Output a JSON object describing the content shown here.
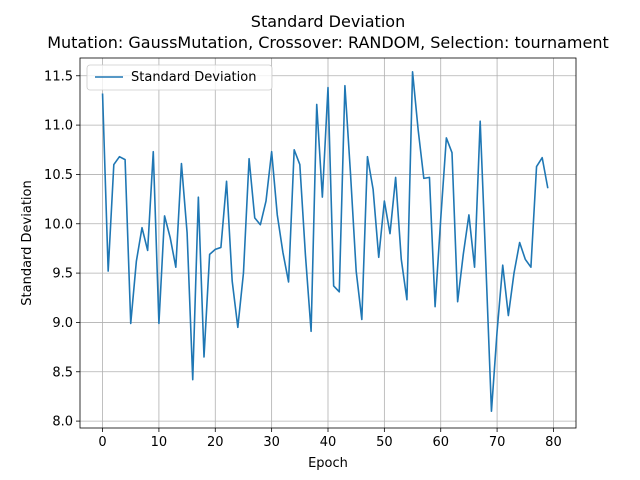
{
  "chart_data": {
    "type": "line",
    "title": "Standard Deviation",
    "subtitle": "Mutation: GaussMutation, Crossover: RANDOM, Selection: tournament",
    "xlabel": "Epoch",
    "ylabel": "Standard Deviation",
    "xlim": [
      -4,
      84
    ],
    "ylim": [
      7.93,
      11.68
    ],
    "xticks": [
      0,
      10,
      20,
      30,
      40,
      50,
      60,
      70,
      80
    ],
    "yticks": [
      8.0,
      8.5,
      9.0,
      9.5,
      10.0,
      10.5,
      11.0,
      11.5
    ],
    "ytick_labels": [
      "8.0",
      "8.5",
      "9.0",
      "9.5",
      "10.0",
      "10.5",
      "11.0",
      "11.5"
    ],
    "grid": true,
    "legend_position": "upper-left",
    "series": [
      {
        "name": "Standard Deviation",
        "color": "#1f77b4",
        "x": [
          0,
          1,
          2,
          3,
          4,
          5,
          6,
          7,
          8,
          9,
          10,
          11,
          12,
          13,
          14,
          15,
          16,
          17,
          18,
          19,
          20,
          21,
          22,
          23,
          24,
          25,
          26,
          27,
          28,
          29,
          30,
          31,
          32,
          33,
          34,
          35,
          36,
          37,
          38,
          39,
          40,
          41,
          42,
          43,
          44,
          45,
          46,
          47,
          48,
          49,
          50,
          51,
          52,
          53,
          54,
          55,
          56,
          57,
          58,
          59,
          60,
          61,
          62,
          63,
          64,
          65,
          66,
          67,
          68,
          69,
          70,
          71,
          72,
          73,
          74,
          75,
          76,
          77,
          78,
          79
        ],
        "values": [
          11.32,
          9.52,
          10.6,
          10.68,
          10.65,
          8.99,
          9.62,
          9.96,
          9.73,
          10.73,
          8.99,
          10.08,
          9.86,
          9.56,
          10.61,
          9.91,
          8.42,
          10.27,
          8.65,
          9.69,
          9.74,
          9.76,
          10.43,
          9.42,
          8.95,
          9.5,
          10.66,
          10.06,
          9.99,
          10.23,
          10.73,
          10.09,
          9.71,
          9.41,
          10.75,
          10.6,
          9.68,
          8.91,
          11.21,
          10.27,
          11.38,
          9.37,
          9.31,
          11.4,
          10.5,
          9.52,
          9.03,
          10.68,
          10.35,
          9.66,
          10.23,
          9.9,
          10.47,
          9.64,
          9.23,
          11.54,
          10.95,
          10.46,
          10.47,
          9.16,
          10.05,
          10.87,
          10.72,
          9.21,
          9.69,
          10.09,
          9.56,
          11.04,
          9.6,
          8.1,
          8.91,
          9.58,
          9.07,
          9.5,
          9.81,
          9.64,
          9.56,
          10.58,
          10.67,
          10.36
        ]
      }
    ]
  }
}
